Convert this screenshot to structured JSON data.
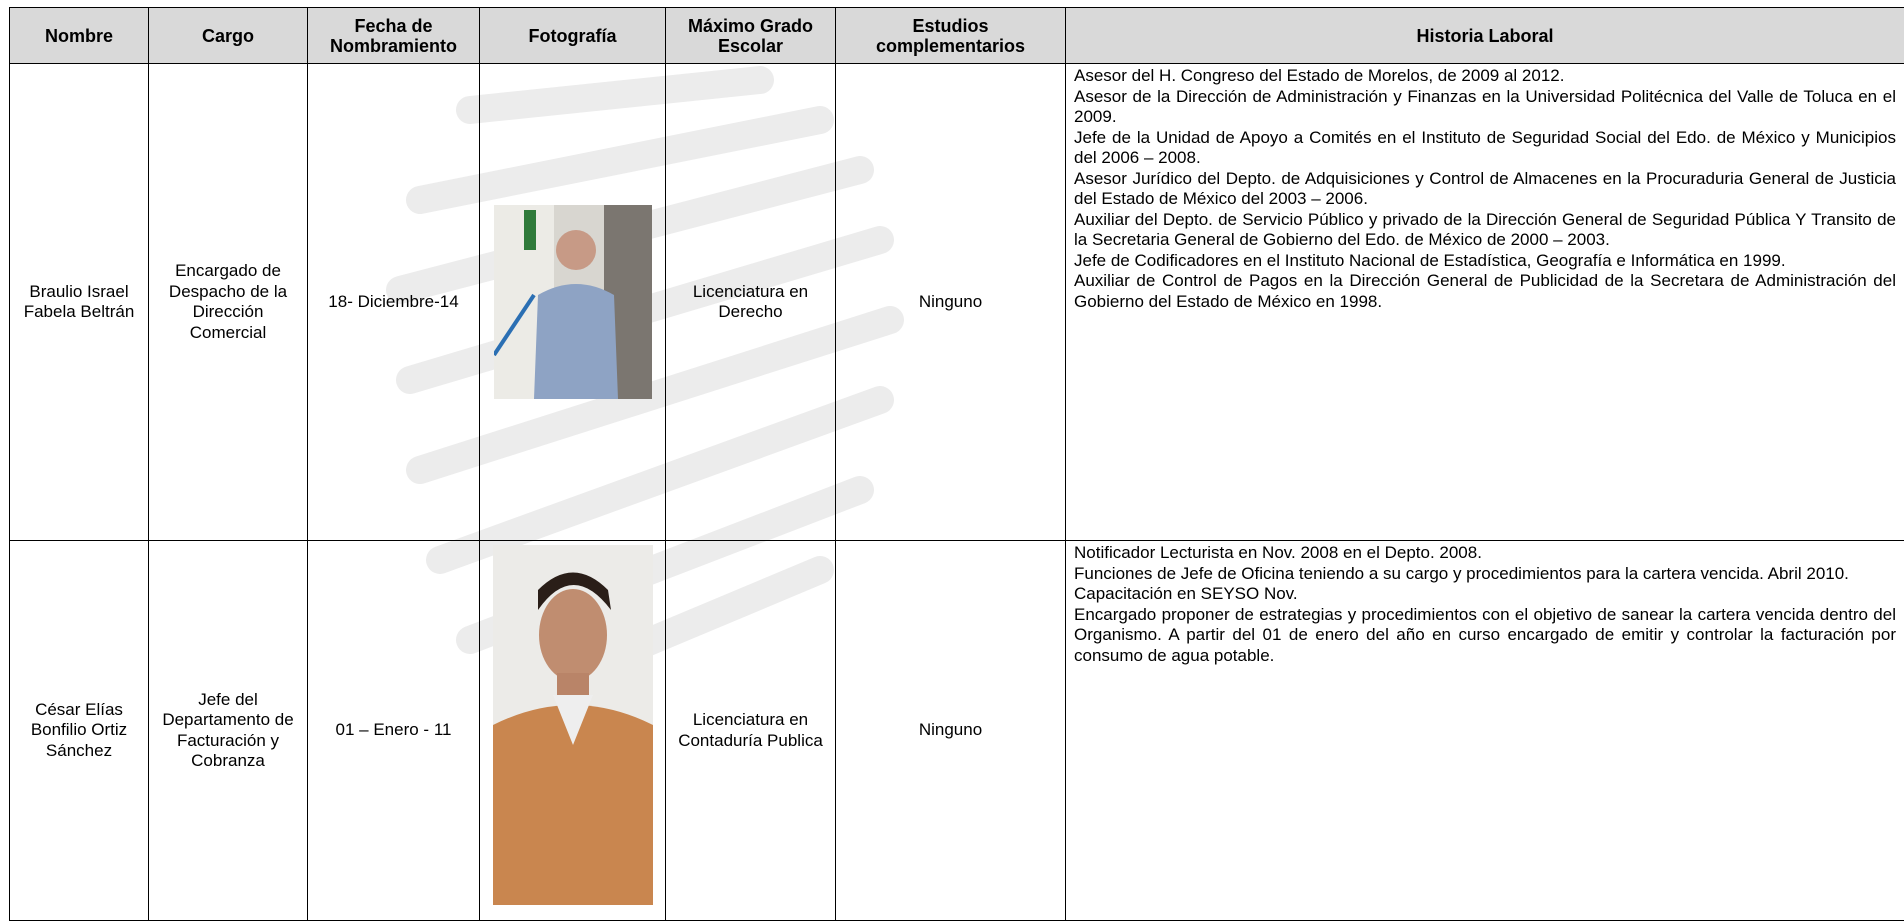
{
  "table": {
    "headers": [
      "Nombre",
      "Cargo",
      "Fecha de Nombramiento",
      "Fotografía",
      "Máximo Grado Escolar",
      "Estudios complementarios",
      "Historia Laboral"
    ],
    "rows": [
      {
        "nombre": "Braulio Israel Fabela Beltrán",
        "cargo": "Encargado de Despacho de la Dirección Comercial",
        "fecha": "18- Diciembre-14",
        "grado": "Licenciatura en Derecho",
        "estudios": "Ninguno",
        "historia": [
          "Asesor del H. Congreso del Estado de Morelos, de 2009 al 2012.",
          "Asesor de la Dirección de Administración y Finanzas en la Universidad Politécnica del Valle de Toluca en el 2009.",
          "Jefe de la Unidad de Apoyo a Comités en el Instituto de Seguridad Social del Edo. de México y Municipios del 2006 – 2008.",
          "Asesor Jurídico del Depto. de Adquisiciones y Control de Almacenes en la Procuraduria General de Justicia del Estado de México del 2003 – 2006.",
          "Auxiliar del Depto. de Servicio Público y privado de la Dirección General de Seguridad Pública Y Transito de la Secretaria General de Gobierno del Edo. de México de 2000 – 2003.",
          "Jefe de Codificadores en el Instituto Nacional de Estadística, Geografía e Informática en 1999.",
          "Auxiliar de Control de Pagos en la Dirección General de Publicidad de la Secretara de Administración del Gobierno del Estado de México en 1998."
        ]
      },
      {
        "nombre": "César Elías Bonfilio Ortiz Sánchez",
        "cargo": "Jefe del Departamento de Facturación y Cobranza",
        "fecha": "01 – Enero - 11",
        "grado": "Licenciatura en Contaduría Publica",
        "estudios": "Ninguno",
        "historia": [
          "Notificador Lecturista en Nov. 2008 en el Depto. 2008.",
          "Funciones de Jefe de Oficina teniendo a su cargo y procedimientos para la cartera vencida. Abril 2010.",
          "Capacitación en SEYSO Nov.",
          "Encargado proponer de estrategias y procedimientos con el objetivo de sanear la cartera vencida dentro del Organismo. A partir del 01 de enero del año en curso encargado de emitir y controlar la facturación por consumo de agua potable."
        ]
      }
    ]
  }
}
